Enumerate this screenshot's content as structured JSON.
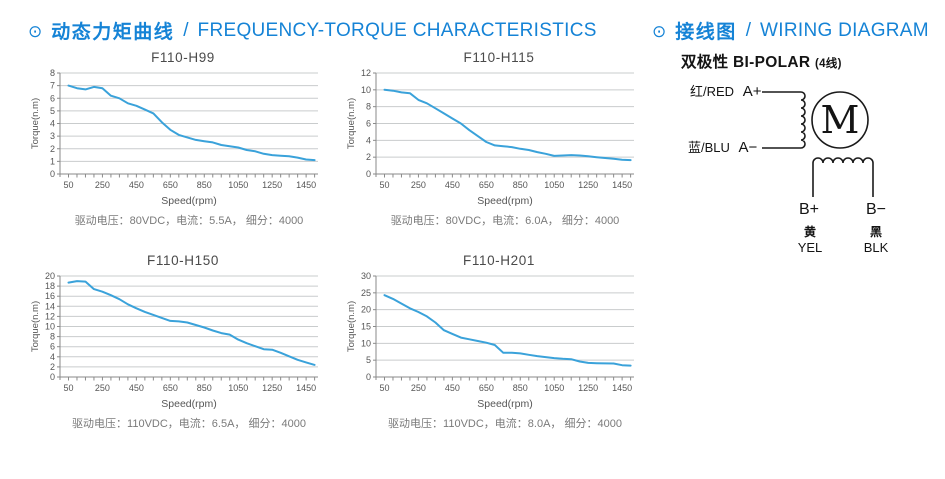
{
  "colors": {
    "accent_blue": "#1583d6",
    "curve_blue": "#3aa2da",
    "grid_gray": "#c9cccd",
    "axis_gray": "#8a8a8a",
    "text_dark": "#4a4a4a",
    "text_mid": "#565656",
    "caption_gray": "#7a7a7a",
    "ink": "#141414"
  },
  "headers": {
    "icon": "⊙",
    "charts_zh": "动态力矩曲线",
    "separator": "/",
    "charts_en": "FREQUENCY-TORQUE CHARACTERISTICS",
    "wiring_zh": "接线图",
    "wiring_en": "WIRING DIAGRAM"
  },
  "wiring": {
    "subtitle": "双极性 BI-POLAR",
    "subtitle_note": "(4线)",
    "motor_letter": "M",
    "phase_a": {
      "plus_color": "红/RED",
      "plus_terminal": "A+",
      "minus_color": "蓝/BLU",
      "minus_terminal": "A−"
    },
    "phase_b": {
      "plus_terminal": "B+",
      "plus_color_zh": "黄",
      "plus_color_en": "YEL",
      "minus_terminal": "B−",
      "minus_color_zh": "黑",
      "minus_color_en": "BLK"
    }
  },
  "chart_data": [
    {
      "type": "line",
      "title": "F110-H99",
      "xlabel": "Speed(rpm)",
      "ylabel": "Torque(n.m)",
      "caption": "驱动电压：80VDC，电流：5.5A， 细分：4000",
      "xlim": [
        0,
        1520
      ],
      "ylim": [
        0,
        8
      ],
      "ytick_step": 1,
      "xtick_minor_step": 50,
      "xticks_labeled": [
        50,
        250,
        450,
        650,
        850,
        1050,
        1250,
        1450
      ],
      "x": [
        50,
        100,
        150,
        200,
        250,
        300,
        350,
        400,
        450,
        500,
        550,
        600,
        650,
        700,
        750,
        800,
        850,
        900,
        950,
        1000,
        1050,
        1100,
        1150,
        1200,
        1250,
        1300,
        1350,
        1400,
        1450,
        1500
      ],
      "y": [
        7.0,
        6.8,
        6.7,
        6.9,
        6.8,
        6.2,
        6.0,
        5.6,
        5.4,
        5.1,
        4.8,
        4.1,
        3.5,
        3.1,
        2.9,
        2.7,
        2.6,
        2.5,
        2.3,
        2.2,
        2.1,
        1.9,
        1.8,
        1.6,
        1.5,
        1.45,
        1.4,
        1.3,
        1.15,
        1.1
      ]
    },
    {
      "type": "line",
      "title": "F110-H115",
      "xlabel": "Speed(rpm)",
      "ylabel": "Torque(n.m)",
      "caption": "驱动电压：80VDC，电流：6.0A， 细分：4000",
      "xlim": [
        0,
        1520
      ],
      "ylim": [
        0,
        12
      ],
      "ytick_step": 2,
      "xtick_minor_step": 50,
      "xticks_labeled": [
        50,
        250,
        450,
        650,
        850,
        1050,
        1250,
        1450
      ],
      "x": [
        50,
        100,
        150,
        200,
        250,
        300,
        350,
        400,
        450,
        500,
        550,
        600,
        650,
        700,
        750,
        800,
        850,
        900,
        950,
        1000,
        1050,
        1100,
        1150,
        1200,
        1250,
        1300,
        1350,
        1400,
        1450,
        1500
      ],
      "y": [
        10.0,
        9.9,
        9.7,
        9.6,
        8.8,
        8.4,
        7.8,
        7.2,
        6.6,
        6.0,
        5.2,
        4.5,
        3.8,
        3.4,
        3.3,
        3.2,
        3.0,
        2.85,
        2.6,
        2.4,
        2.15,
        2.2,
        2.25,
        2.2,
        2.1,
        2.0,
        1.9,
        1.8,
        1.7,
        1.65
      ]
    },
    {
      "type": "line",
      "title": "F110-H150",
      "xlabel": "Speed(rpm)",
      "ylabel": "Torque(n.m)",
      "caption": "驱动电压：110VDC，电流：6.5A， 细分：4000",
      "xlim": [
        0,
        1520
      ],
      "ylim": [
        0,
        20
      ],
      "ytick_step": 2,
      "xtick_minor_step": 50,
      "xticks_labeled": [
        50,
        250,
        450,
        650,
        850,
        1050,
        1250,
        1450
      ],
      "x": [
        50,
        100,
        150,
        200,
        250,
        300,
        350,
        400,
        450,
        500,
        550,
        600,
        650,
        700,
        750,
        800,
        850,
        900,
        950,
        1000,
        1050,
        1100,
        1150,
        1200,
        1250,
        1300,
        1350,
        1400,
        1450,
        1500
      ],
      "y": [
        18.7,
        19.0,
        18.9,
        17.4,
        16.9,
        16.2,
        15.4,
        14.4,
        13.6,
        12.9,
        12.3,
        11.7,
        11.1,
        11.0,
        10.8,
        10.3,
        9.8,
        9.2,
        8.7,
        8.4,
        7.4,
        6.7,
        6.1,
        5.5,
        5.4,
        4.8,
        4.1,
        3.4,
        2.9,
        2.4
      ]
    },
    {
      "type": "line",
      "title": "F110-H201",
      "xlabel": "Speed(rpm)",
      "ylabel": "Torque(n.m)",
      "caption": "驱动电压：110VDC，电流：8.0A， 细分：4000",
      "xlim": [
        0,
        1520
      ],
      "ylim": [
        0,
        30
      ],
      "ytick_step": 5,
      "xtick_minor_step": 50,
      "xticks_labeled": [
        50,
        250,
        450,
        650,
        850,
        1050,
        1250,
        1450
      ],
      "x": [
        50,
        100,
        150,
        200,
        250,
        300,
        350,
        400,
        450,
        500,
        550,
        600,
        650,
        700,
        750,
        800,
        850,
        900,
        950,
        1000,
        1050,
        1100,
        1150,
        1200,
        1250,
        1300,
        1350,
        1400,
        1450,
        1500
      ],
      "y": [
        24.3,
        23.2,
        21.8,
        20.4,
        19.3,
        18.0,
        16.2,
        13.9,
        12.8,
        11.7,
        11.2,
        10.7,
        10.2,
        9.5,
        7.2,
        7.2,
        7.0,
        6.6,
        6.2,
        5.9,
        5.6,
        5.4,
        5.3,
        4.6,
        4.2,
        4.1,
        4.05,
        4.0,
        3.5,
        3.4
      ]
    }
  ]
}
